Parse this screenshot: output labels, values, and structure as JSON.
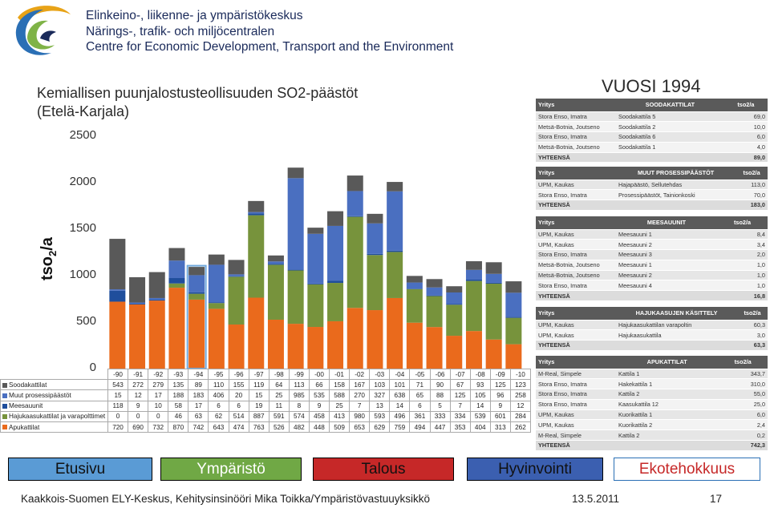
{
  "header": {
    "org_lines": [
      "Elinkeino-, liikenne- ja ympäristökeskus",
      "Närings-, trafik- och miljöcentralen",
      "Centre for Economic Development, Transport and the Environment"
    ]
  },
  "slide": {
    "title_line1": "Kemiallisen puunjalostusteollisuuden SO2-päästöt",
    "title_line2": "(Etelä-Karjala)",
    "year_label": "VUOSI 1994",
    "ylabel_main": "tso",
    "ylabel_sub": "2",
    "ylabel_tail": "/a"
  },
  "chart_data": {
    "type": "bar",
    "stacked": true,
    "ylabel": "tso2/a",
    "ylim": [
      0,
      2500
    ],
    "yticks": [
      "0",
      "500",
      "1000",
      "1500",
      "2000",
      "2500"
    ],
    "categories": [
      "-90",
      "-91",
      "-92",
      "-93",
      "-94",
      "-95",
      "-96",
      "-97",
      "-98",
      "-99",
      "-00",
      "-01",
      "-02",
      "-03",
      "-04",
      "-05",
      "-06",
      "-07",
      "-08",
      "-09",
      "-10"
    ],
    "highlight_category": "-94",
    "series": [
      {
        "name": "Apukattilat",
        "color": "#ea6a1c",
        "values": [
          720,
          690,
          732,
          870,
          742,
          643,
          474,
          763,
          526,
          482,
          448,
          509,
          653,
          629,
          759,
          494,
          447,
          353,
          404,
          313,
          262
        ]
      },
      {
        "name": "Hajukaasukattilat ja varapolttimet",
        "color": "#77933c",
        "values": [
          0,
          0,
          0,
          46,
          63,
          62,
          514,
          887,
          591,
          574,
          458,
          413,
          980,
          593,
          496,
          361,
          333,
          334,
          539,
          601,
          284
        ]
      },
      {
        "name": "Meesauunit",
        "color": "#1f4e9c",
        "values": [
          118,
          9,
          10,
          58,
          17,
          6,
          6,
          19,
          11,
          8,
          9,
          25,
          7,
          13,
          14,
          6,
          5,
          7,
          14,
          9,
          12
        ]
      },
      {
        "name": "Muut prosessipäästöt",
        "color": "#4a6fc0",
        "values": [
          15,
          12,
          17,
          188,
          183,
          406,
          20,
          15,
          25,
          985,
          535,
          588,
          270,
          327,
          638,
          65,
          88,
          125,
          105,
          96,
          258
        ]
      },
      {
        "name": "Soodakattilat",
        "color": "#595959",
        "values": [
          543,
          272,
          279,
          135,
          89,
          110,
          155,
          119,
          64,
          113,
          66,
          158,
          167,
          103,
          101,
          71,
          90,
          67,
          93,
          125,
          123
        ]
      }
    ],
    "table_series_order": [
      "Soodakattilat",
      "Muut prosessipäästöt",
      "Meesauunit",
      "Hajukaasukattilat ja varapolttimet",
      "Apukattilat"
    ]
  },
  "right_tables": [
    {
      "head": [
        "Yritys",
        "SOODAKATTILAT",
        "tso2/a"
      ],
      "rows": [
        [
          "Stora Enso, Imatra",
          "Soodakattila 5",
          "69,0"
        ],
        [
          "Metsä-Botnia, Joutseno",
          "Soodakattila 2",
          "10,0"
        ],
        [
          "Stora Enso, Imatra",
          "Soodakattila 6",
          "6,0"
        ],
        [
          "Metsä-Botnia, Joutseno",
          "Soodakattila 1",
          "4,0"
        ]
      ],
      "total": [
        "YHTEENSÄ",
        "",
        "89,0"
      ]
    },
    {
      "head": [
        "Yritys",
        "MUUT PROSESSIPÄÄSTÖT",
        "tso2/a"
      ],
      "rows": [
        [
          "UPM, Kaukas",
          "Hajapäästö, Sellutehdas",
          "113,0"
        ],
        [
          "Stora Enso, Imatra",
          "Prosessipäästöt, Tainionkoski",
          "70,0"
        ]
      ],
      "total": [
        "YHTEENSÄ",
        "",
        "183,0"
      ]
    },
    {
      "head": [
        "Yritys",
        "MEESAUUNIT",
        "tso2/a"
      ],
      "rows": [
        [
          "UPM, Kaukas",
          "Meesauuni 1",
          "8,4"
        ],
        [
          "UPM, Kaukas",
          "Meesauuni 2",
          "3,4"
        ],
        [
          "Stora Enso, Imatra",
          "Meesauuni 3",
          "2,0"
        ],
        [
          "Metsä-Botnia, Joutseno",
          "Meesauuni 1",
          "1,0"
        ],
        [
          "Metsä-Botnia, Joutseno",
          "Meesauuni 2",
          "1,0"
        ],
        [
          "Stora Enso, Imatra",
          "Meesauuni 4",
          "1,0"
        ]
      ],
      "total": [
        "YHTEENSÄ",
        "",
        "16,8"
      ]
    },
    {
      "head": [
        "Yritys",
        "HAJUKAASUJEN KÄSITTELY",
        "tso2/a"
      ],
      "rows": [
        [
          "UPM, Kaukas",
          "Hajukaasukattilan varapoltin",
          "60,3"
        ],
        [
          "UPM, Kaukas",
          "Hajukaasukattila",
          "3,0"
        ]
      ],
      "total": [
        "YHTEENSÄ",
        "",
        "63,3"
      ]
    },
    {
      "head": [
        "Yritys",
        "APUKATTILAT",
        "tso2/a"
      ],
      "rows": [
        [
          "M-Real, Simpele",
          "Kattila 1",
          "343,7"
        ],
        [
          "Stora Enso, Imatra",
          "Hakekattila 1",
          "310,0"
        ],
        [
          "Stora Enso, Imatra",
          "Kattila 2",
          "55,0"
        ],
        [
          "Stora Enso, Imatra",
          "Kaasukattila 12",
          "25,0"
        ],
        [
          "UPM, Kaukas",
          "Kuorikattila 1",
          "6,0"
        ],
        [
          "UPM, Kaukas",
          "Kuorikattila 2",
          "2,4"
        ],
        [
          "M-Real, Simpele",
          "Kattila 2",
          "0,2"
        ]
      ],
      "total": [
        "YHTEENSÄ",
        "",
        "742,3"
      ]
    }
  ],
  "nav": [
    {
      "label": "Etusivu",
      "color": "#5a9bd5"
    },
    {
      "label": "Ympäristö",
      "color": "#70a845"
    },
    {
      "label": "Talous",
      "color": "#c62828"
    },
    {
      "label": "Hyvinvointi",
      "color": "#3b5fb0"
    },
    {
      "label": "Ekotehokkuus",
      "color": "#ea6a1c"
    }
  ],
  "footer": {
    "text": "Kaakkois-Suomen ELY-Keskus, Kehitysinsinööri Mika Toikka/Ympäristövastuuyksikkö",
    "date": "13.5.2011",
    "page": "17"
  }
}
